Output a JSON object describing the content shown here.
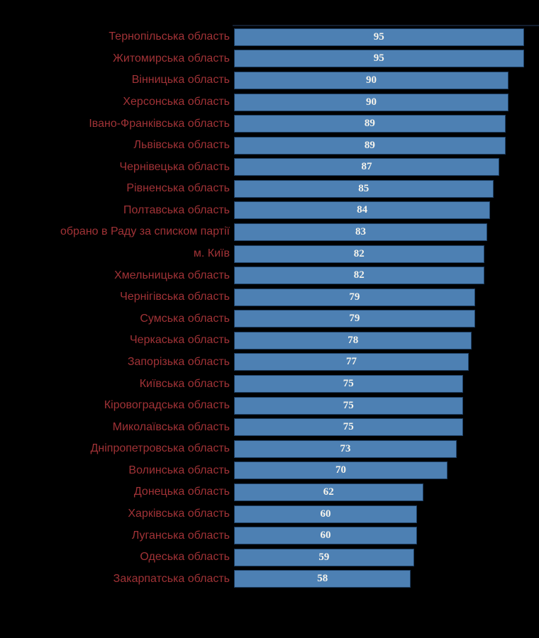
{
  "chart_data": {
    "type": "bar",
    "orientation": "horizontal",
    "title": "",
    "xlabel": "",
    "ylabel": "",
    "xlim": [
      0,
      100
    ],
    "grid": false,
    "legend": false,
    "background_color": "#000000",
    "bar_color": "#4d80b3",
    "bar_border_color": "#1e3f63",
    "category_label_color": "#a03236",
    "value_label_color": "#f5f3ec",
    "categories": [
      "Тернопільська область",
      "Житомирська область",
      "Вінницька область",
      "Херсонська область",
      "Івано-Франківська область",
      "Львівська область",
      "Чернівецька область",
      "Рівненська область",
      "Полтавська область",
      "обрано в Раду за списком партії",
      "м. Київ",
      "Хмельницька область",
      "Чернігівська область",
      "Сумська область",
      "Черкаська область",
      "Запорізька область",
      "Київська область",
      "Кіровоградська область",
      "Миколаївська область",
      "Дніпропетровська область",
      "Волинська область",
      "Донецька область",
      "Харківська область",
      "Луганська область",
      "Одеська область",
      "Закарпатська область"
    ],
    "values": [
      95,
      95,
      90,
      90,
      89,
      89,
      87,
      85,
      84,
      83,
      82,
      82,
      79,
      79,
      78,
      77,
      75,
      75,
      75,
      73,
      70,
      62,
      60,
      60,
      59,
      58
    ]
  }
}
